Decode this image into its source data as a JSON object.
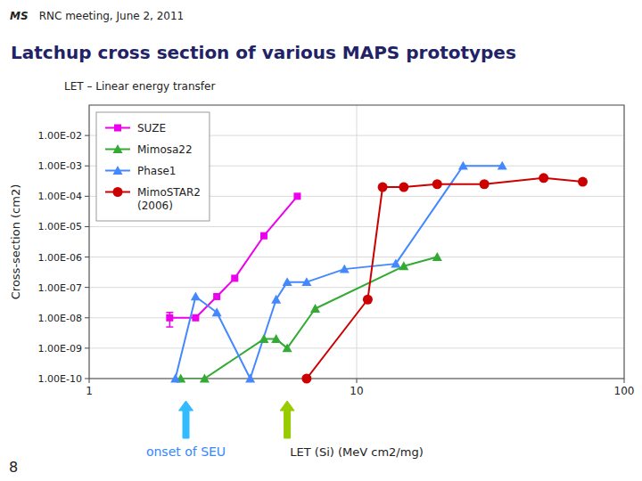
{
  "chart_data": {
    "type": "line",
    "title": "Latchup cross section of various MAPS prototypes",
    "subtitle": "LET – Linear energy transfer",
    "xlabel": "LET (Si) (MeV cm2/mg)",
    "ylabel": "Cross-section (cm2)",
    "log": true,
    "grid": true,
    "legend": "upper left",
    "xlim": [
      1,
      100
    ],
    "ylim": [
      1e-10,
      0.1
    ],
    "xticks": [
      1,
      10,
      100
    ],
    "yticks": [
      {
        "value": 1e-10,
        "label": "1.00E-10"
      },
      {
        "value": 1e-09,
        "label": "1.00E-09"
      },
      {
        "value": 1e-08,
        "label": "1.00E-08"
      },
      {
        "value": 1e-07,
        "label": "1.00E-07"
      },
      {
        "value": 1e-06,
        "label": "1.00E-06"
      },
      {
        "value": 1e-05,
        "label": "1.00E-05"
      },
      {
        "value": 0.0001,
        "label": "1.00E-04"
      },
      {
        "value": 0.001,
        "label": "1.00E-03"
      },
      {
        "value": 0.01,
        "label": "1.00E-02"
      }
    ],
    "series": [
      {
        "name": "SUZE",
        "color": "#ee00ee",
        "marker": "square",
        "x": [
          2.0,
          2.5,
          3.0,
          3.5,
          4.5,
          6.0
        ],
        "values": [
          1e-08,
          1e-08,
          5e-08,
          2e-07,
          5e-06,
          0.0001
        ],
        "error_low": [
          5e-09,
          null,
          null,
          null,
          null,
          null
        ],
        "error_high": [
          5e-09,
          null,
          null,
          null,
          null,
          null
        ]
      },
      {
        "name": "Mimosa22",
        "color": "#33aa33",
        "marker": "triangle",
        "x": [
          2.2,
          2.7,
          4.5,
          5.0,
          5.5,
          7.0,
          15.0,
          20.0
        ],
        "values": [
          1e-10,
          1e-10,
          2e-09,
          2e-09,
          1e-09,
          2e-08,
          5e-07,
          1e-06
        ]
      },
      {
        "name": "Phase1",
        "color": "#4488ff",
        "marker": "triangle",
        "x": [
          2.1,
          2.5,
          3.0,
          4.0,
          5.0,
          5.5,
          6.5,
          9.0,
          14.0,
          25.0,
          35.0
        ],
        "values": [
          1e-10,
          5e-08,
          1.5e-08,
          1e-10,
          4e-08,
          1.5e-07,
          1.5e-07,
          4e-07,
          6e-07,
          0.001,
          0.001
        ]
      },
      {
        "name": "MimoSTAR2\n(2006)",
        "color": "#cc0000",
        "marker": "circle",
        "x": [
          6.5,
          11.0,
          12.5,
          15.0,
          20.0,
          30.0,
          50.0,
          70.0
        ],
        "values": [
          1e-10,
          4e-08,
          0.0002,
          0.0002,
          0.00025,
          0.00025,
          0.0004,
          0.0003
        ]
      }
    ],
    "annotations": [
      {
        "text": "MS"
      },
      {
        "text": "  RNC meeting, June 2, 2011"
      },
      {
        "text": "onset of SEU",
        "x": 2.3,
        "color": "#3388ff"
      },
      {
        "text": "8"
      }
    ],
    "arrows": [
      {
        "x": 2.3,
        "color": "#33bbff"
      },
      {
        "x": 5.5,
        "color": "#99cc00"
      }
    ]
  }
}
